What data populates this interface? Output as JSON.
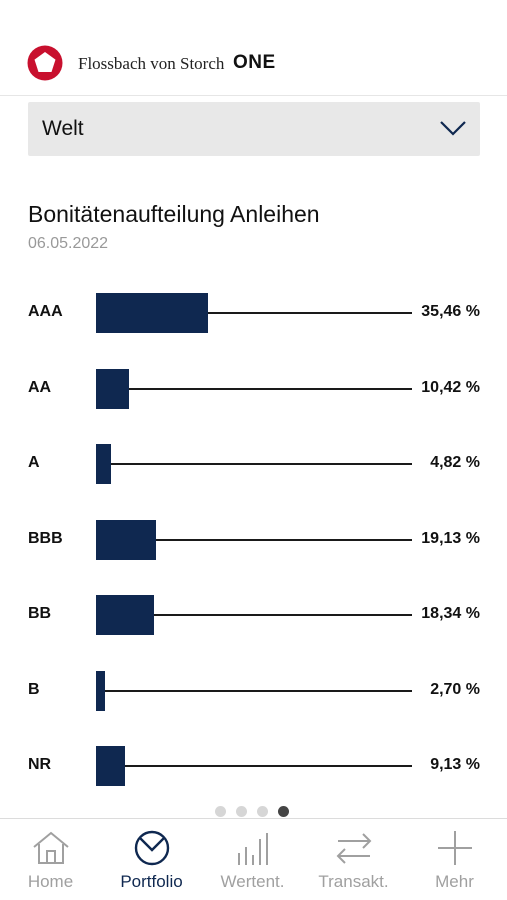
{
  "header": {
    "brand_name": "Flossbach von Storch",
    "brand_suffix": "ONE",
    "logo_icon": "pentagon-logo-icon",
    "brand_color": "#c8102e"
  },
  "region_select": {
    "selected": "Welt",
    "icon": "chevron-down-icon"
  },
  "chart": {
    "title": "Bonitätenaufteilung Anleihen",
    "date": "06.05.2022"
  },
  "chart_data": {
    "type": "bar",
    "orientation": "horizontal",
    "categories": [
      "AAA",
      "AA",
      "A",
      "BBB",
      "BB",
      "B",
      "NR"
    ],
    "values": [
      35.46,
      10.42,
      4.82,
      19.13,
      18.34,
      2.7,
      9.13
    ],
    "value_labels": [
      "35,46 %",
      "10,42 %",
      "4,82 %",
      "19,13 %",
      "18,34 %",
      "2,70 %",
      "9,13 %"
    ],
    "xlim": [
      0,
      100
    ],
    "bar_color": "#0f2850"
  },
  "pager": {
    "count": 4,
    "active_index": 3
  },
  "tabs": [
    {
      "label": "Home",
      "icon": "home-icon",
      "active": false
    },
    {
      "label": "Portfolio",
      "icon": "portfolio-pie-icon",
      "active": true
    },
    {
      "label": "Wertent.",
      "icon": "bar-chart-icon",
      "active": false
    },
    {
      "label": "Transakt.",
      "icon": "transfer-arrows-icon",
      "active": false
    },
    {
      "label": "Mehr",
      "icon": "plus-icon",
      "active": false
    }
  ]
}
